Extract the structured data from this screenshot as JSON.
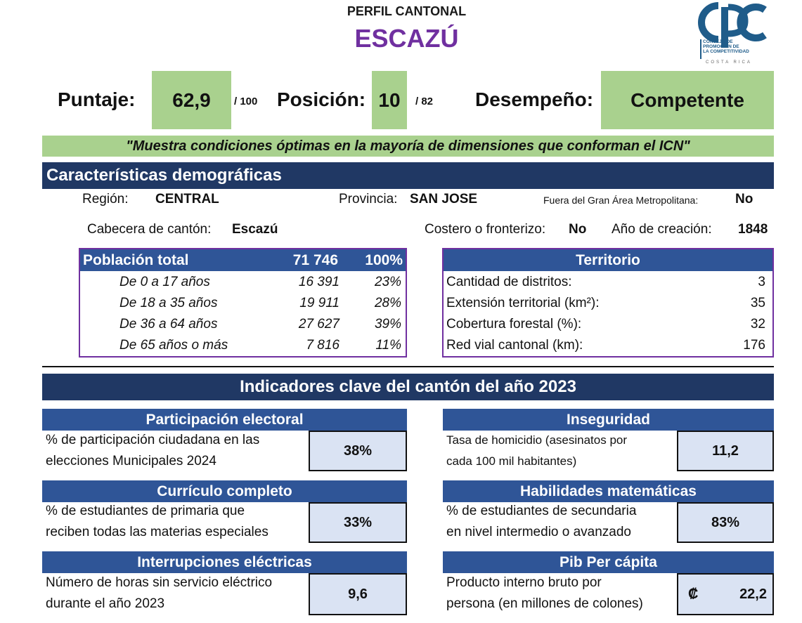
{
  "header": {
    "subtitle": "PERFIL CANTONAL",
    "canton": "ESCAZÚ"
  },
  "logo": {
    "acronym": "CPC",
    "line1": "CONSEJO DE",
    "line2": "PROMOCIÓN DE",
    "line3": "LA COMPETITIVIDAD",
    "country": "COSTA RICA",
    "color": "#1f5c8a"
  },
  "score": {
    "puntaje_label": "Puntaje:",
    "puntaje_value": "62,9",
    "puntaje_suffix": "/ 100",
    "posicion_label": "Posición:",
    "posicion_value": "10",
    "posicion_suffix": "/ 82",
    "desempeno_label": "Desempeño:",
    "desempeno_value": "Competente"
  },
  "quote": "\"Muestra condiciones óptimas en la mayoría de dimensiones que conforman el ICN\"",
  "demographics": {
    "title": "Características demográficas",
    "region_label": "Región:",
    "region_value": "CENTRAL",
    "provincia_label": "Provincia:",
    "provincia_value": "SAN JOSE",
    "gam_label": "Fuera del Gran Área Metropolitana:",
    "gam_value": "No",
    "cabecera_label": "Cabecera de cantón:",
    "cabecera_value": "Escazú",
    "costero_label": "Costero o fronterizo:",
    "costero_value": "No",
    "anio_label": "Año de creación:",
    "anio_value": "1848"
  },
  "population": {
    "title": "Población total",
    "total": "71 746",
    "total_pct": "100%",
    "rows": [
      {
        "label": "De 0 a 17 años",
        "value": "16 391",
        "pct": "23%"
      },
      {
        "label": "De 18 a 35 años",
        "value": "19 911",
        "pct": "28%"
      },
      {
        "label": "De 36 a 64 años",
        "value": "27 627",
        "pct": "39%"
      },
      {
        "label": "De 65 años o más",
        "value": "7 816",
        "pct": "11%"
      }
    ]
  },
  "territory": {
    "title": "Territorio",
    "rows": [
      {
        "label": "Cantidad de distritos:",
        "value": "3"
      },
      {
        "label": "Extensión territorial (km²):",
        "value": "35"
      },
      {
        "label": "Cobertura forestal (%):",
        "value": "32"
      },
      {
        "label": "Red vial cantonal (km):",
        "value": "176"
      }
    ]
  },
  "indicators": {
    "title": "Indicadores clave del cantón del año 2023",
    "participacion": {
      "title": "Participación electoral",
      "line1": "% de participación ciudadana en las",
      "line2": "elecciones Municipales 2024",
      "value": "38%"
    },
    "inseguridad": {
      "title": "Inseguridad",
      "line1": "Tasa de homicidio (asesinatos por",
      "line2": "cada 100 mil habitantes)",
      "value": "11,2"
    },
    "curriculo": {
      "title": "Currículo completo",
      "line1": "% de estudiantes de primaria que",
      "line2": "reciben todas las materias especiales",
      "value": "33%"
    },
    "matematicas": {
      "title": "Habilidades matemáticas",
      "line1": "% de estudiantes de secundaria",
      "line2": "en nivel intermedio o avanzado",
      "value": "83%"
    },
    "interrupciones": {
      "title": "Interrupciones eléctricas",
      "line1": "Número de horas sin servicio eléctrico",
      "line2": "durante el año 2023",
      "value": "9,6"
    },
    "pib": {
      "title": "Pib Per cápita",
      "line1": "Producto interno bruto por",
      "line2": "persona (en millones de colones)",
      "currency": "₡",
      "value": "22,2"
    }
  },
  "colors": {
    "navy": "#203864",
    "blue": "#2f5597",
    "green": "#a9d18e",
    "purple": "#7030a0",
    "light_blue": "#dae3f3"
  }
}
